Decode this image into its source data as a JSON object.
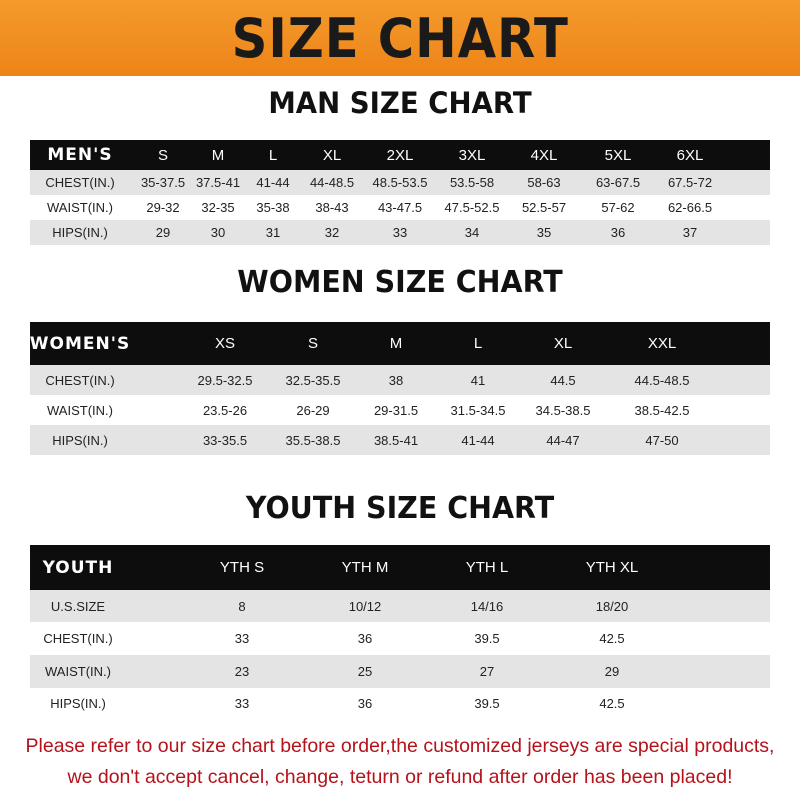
{
  "banner_title": "SIZE CHART",
  "tables": [
    {
      "title": "MAN SIZE CHART",
      "header": [
        "MEN'S",
        "S",
        "M",
        "L",
        "XL",
        "2XL",
        "3XL",
        "4XL",
        "5XL",
        "6XL"
      ],
      "rows": [
        [
          "CHEST(IN.)",
          "35-37.5",
          "37.5-41",
          "41-44",
          "44-48.5",
          "48.5-53.5",
          "53.5-58",
          "58-63",
          "63-67.5",
          "67.5-72"
        ],
        [
          "WAIST(IN.)",
          "29-32",
          "32-35",
          "35-38",
          "38-43",
          "43-47.5",
          "47.5-52.5",
          "52.5-57",
          "57-62",
          "62-66.5"
        ],
        [
          "HIPS(IN.)",
          "29",
          "30",
          "31",
          "32",
          "33",
          "34",
          "35",
          "36",
          "37"
        ]
      ]
    },
    {
      "title": "WOMEN SIZE CHART",
      "header": [
        "WOMEN'S",
        "XS",
        "S",
        "M",
        "L",
        "XL",
        "XXL"
      ],
      "rows": [
        [
          "CHEST(IN.)",
          "29.5-32.5",
          "32.5-35.5",
          "38",
          "41",
          "44.5",
          "44.5-48.5"
        ],
        [
          "WAIST(IN.)",
          "23.5-26",
          "26-29",
          "29-31.5",
          "31.5-34.5",
          "34.5-38.5",
          "38.5-42.5"
        ],
        [
          "HIPS(IN.)",
          "33-35.5",
          "35.5-38.5",
          "38.5-41",
          "41-44",
          "44-47",
          "47-50"
        ]
      ]
    },
    {
      "title": "YOUTH SIZE CHART",
      "header": [
        "YOUTH",
        "YTH S",
        "YTH M",
        "YTH L",
        "YTH XL"
      ],
      "rows": [
        [
          "U.S.SIZE",
          "8",
          "10/12",
          "14/16",
          "18/20"
        ],
        [
          "CHEST(IN.)",
          "33",
          "36",
          "39.5",
          "42.5"
        ],
        [
          "WAIST(IN.)",
          "23",
          "25",
          "27",
          "29"
        ],
        [
          "HIPS(IN.)",
          "33",
          "36",
          "39.5",
          "42.5"
        ]
      ]
    }
  ],
  "note": {
    "line1": "Please refer to our size chart before order,the customized jerseys are special products,",
    "line2": "we don't accept cancel, change, teturn or refund after order has been placed!"
  },
  "colors": {
    "banner": "#f08a1e",
    "header_row": "#0d0d0d",
    "note_text": "#b5121b"
  }
}
